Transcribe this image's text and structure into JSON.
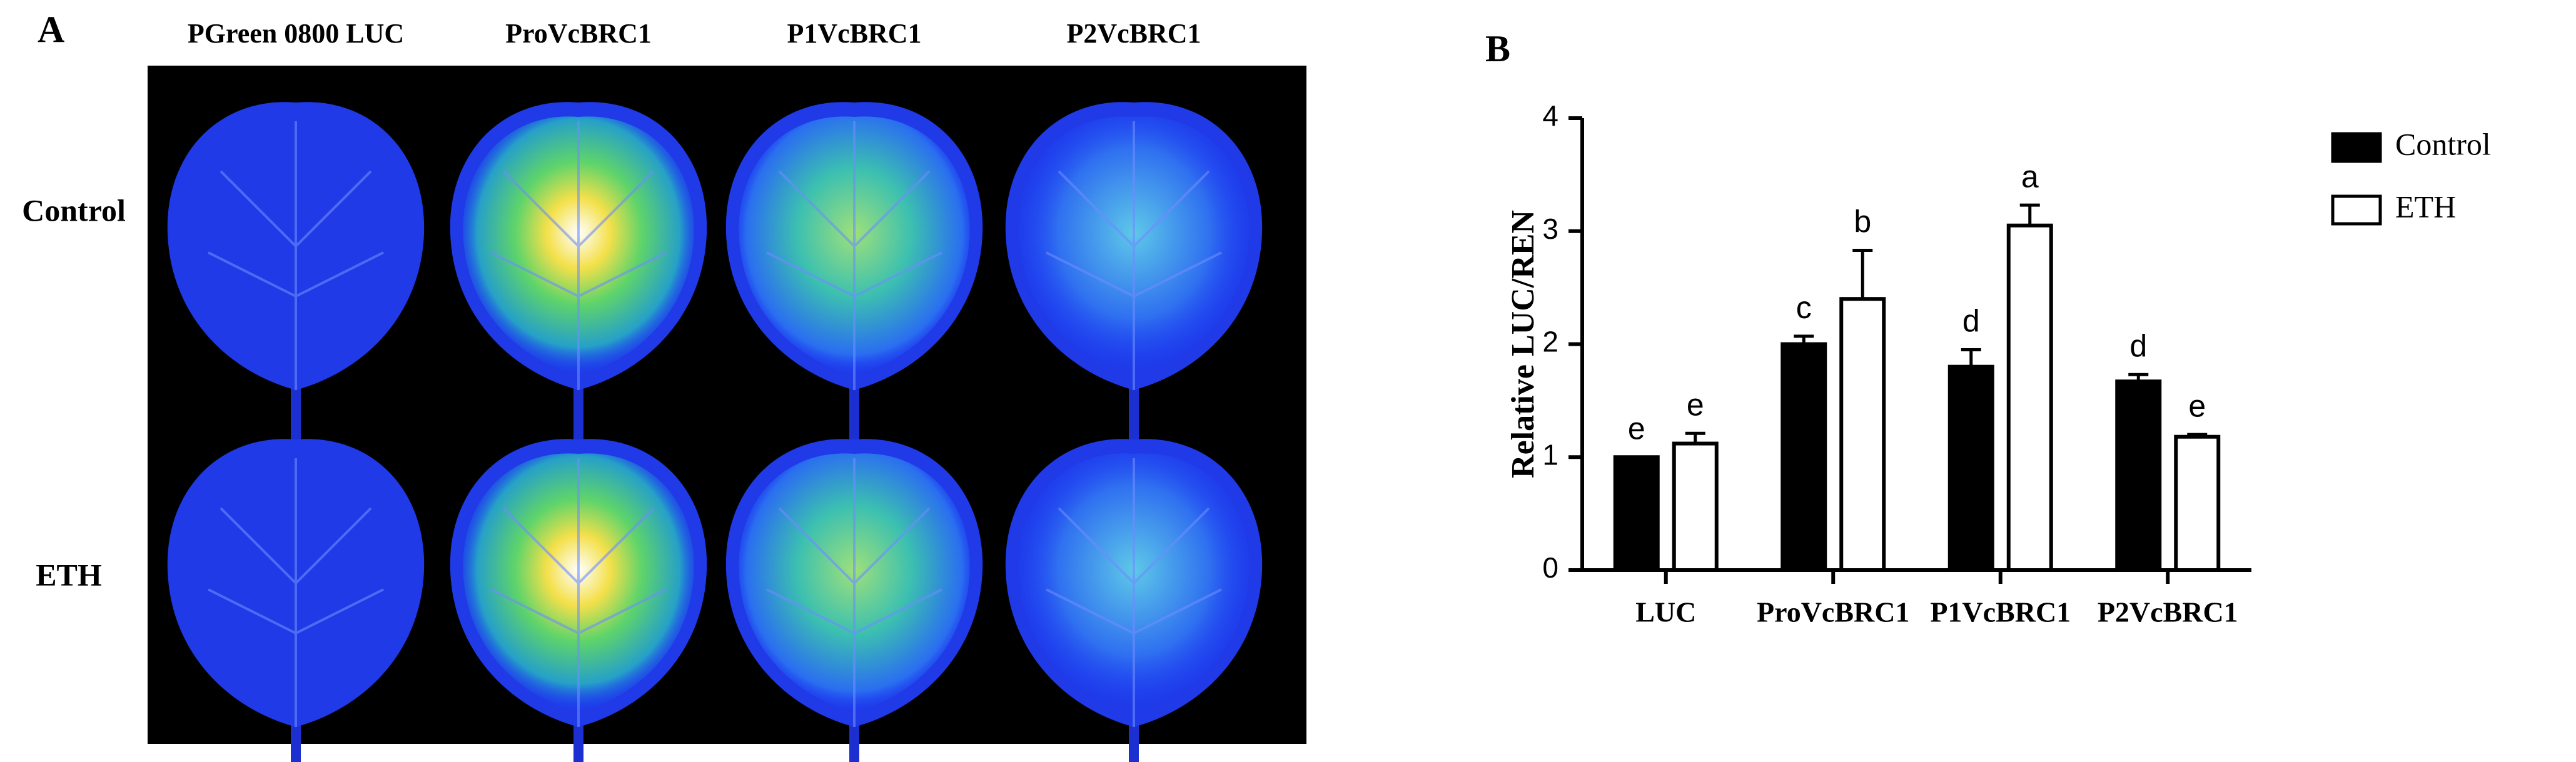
{
  "panel_a": {
    "label": "A",
    "columns": [
      "PGreen 0800 LUC",
      "ProVcBRC1",
      "P1VcBRC1",
      "P2VcBRC1"
    ],
    "rows": [
      "Control",
      "ETH"
    ]
  },
  "chart_data": {
    "type": "bar",
    "panel_label": "B",
    "ylabel": "Relative LUC/REN",
    "categories": [
      "LUC",
      "ProVcBRC1",
      "P1VcBRC1",
      "P2VcBRC1"
    ],
    "series": [
      {
        "name": "Control",
        "color": "#000000",
        "values": [
          1.0,
          2.0,
          1.8,
          1.67
        ],
        "errors": [
          0,
          0.07,
          0.15,
          0.06
        ],
        "letters": [
          "e",
          "c",
          "d",
          "d"
        ]
      },
      {
        "name": "ETH",
        "color": "#ffffff",
        "values": [
          1.12,
          2.4,
          3.05,
          1.18
        ],
        "errors": [
          0.09,
          0.43,
          0.18,
          0.02
        ],
        "letters": [
          "e",
          "b",
          "a",
          "e"
        ]
      }
    ],
    "ylim": [
      0,
      4
    ],
    "yticks": [
      0,
      1,
      2,
      3,
      4
    ],
    "legend": "right"
  }
}
